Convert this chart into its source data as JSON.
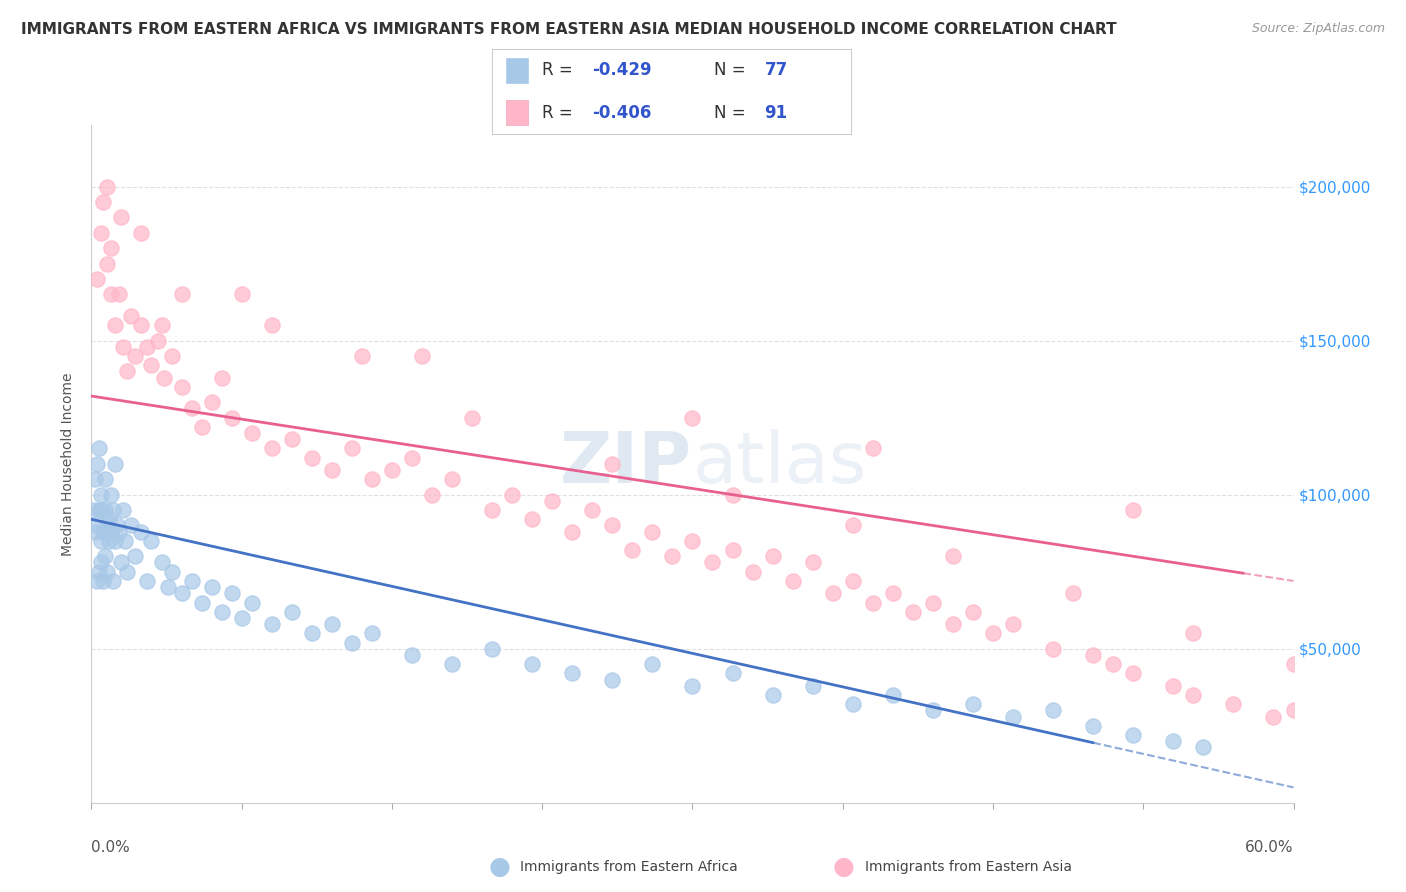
{
  "title": "IMMIGRANTS FROM EASTERN AFRICA VS IMMIGRANTS FROM EASTERN ASIA MEDIAN HOUSEHOLD INCOME CORRELATION CHART",
  "source": "Source: ZipAtlas.com",
  "ylabel": "Median Household Income",
  "series": [
    {
      "name": "Immigrants from Eastern Africa",
      "marker_color": "#a8c8e8",
      "line_color": "#4472c4",
      "R": -0.429,
      "N": 77
    },
    {
      "name": "Immigrants from Eastern Asia",
      "marker_color": "#ffb6c8",
      "line_color": "#e86090",
      "R": -0.406,
      "N": 91
    }
  ],
  "xlim": [
    0.0,
    0.6
  ],
  "ylim": [
    0,
    220000
  ],
  "yticks": [
    0,
    50000,
    100000,
    150000,
    200000
  ],
  "ytick_labels": [
    "",
    "$50,000",
    "$100,000",
    "$150,000",
    "$200,000"
  ],
  "background_color": "#ffffff",
  "grid_color": "#e0e0e0",
  "africa_line_intercept": 92000,
  "africa_line_slope": -145000,
  "africa_line_solid_end": 0.5,
  "asia_line_intercept": 132000,
  "asia_line_slope": -100000,
  "asia_line_solid_end": 0.575,
  "africa_x": [
    0.001,
    0.002,
    0.002,
    0.003,
    0.003,
    0.003,
    0.004,
    0.004,
    0.004,
    0.005,
    0.005,
    0.005,
    0.005,
    0.006,
    0.006,
    0.007,
    0.007,
    0.007,
    0.008,
    0.008,
    0.009,
    0.009,
    0.01,
    0.01,
    0.011,
    0.011,
    0.012,
    0.012,
    0.013,
    0.014,
    0.015,
    0.016,
    0.017,
    0.018,
    0.02,
    0.022,
    0.025,
    0.028,
    0.03,
    0.035,
    0.038,
    0.04,
    0.045,
    0.05,
    0.055,
    0.06,
    0.065,
    0.07,
    0.075,
    0.08,
    0.09,
    0.1,
    0.11,
    0.12,
    0.13,
    0.14,
    0.16,
    0.18,
    0.2,
    0.22,
    0.24,
    0.26,
    0.28,
    0.3,
    0.32,
    0.34,
    0.36,
    0.38,
    0.4,
    0.42,
    0.44,
    0.46,
    0.48,
    0.5,
    0.52,
    0.54,
    0.555
  ],
  "africa_y": [
    95000,
    88000,
    105000,
    72000,
    110000,
    90000,
    95000,
    75000,
    115000,
    85000,
    95000,
    78000,
    100000,
    88000,
    72000,
    95000,
    105000,
    80000,
    90000,
    75000,
    85000,
    92000,
    88000,
    100000,
    72000,
    95000,
    85000,
    110000,
    90000,
    88000,
    78000,
    95000,
    85000,
    75000,
    90000,
    80000,
    88000,
    72000,
    85000,
    78000,
    70000,
    75000,
    68000,
    72000,
    65000,
    70000,
    62000,
    68000,
    60000,
    65000,
    58000,
    62000,
    55000,
    58000,
    52000,
    55000,
    48000,
    45000,
    50000,
    45000,
    42000,
    40000,
    45000,
    38000,
    42000,
    35000,
    38000,
    32000,
    35000,
    30000,
    32000,
    28000,
    30000,
    25000,
    22000,
    20000,
    18000
  ],
  "asia_x": [
    0.003,
    0.005,
    0.006,
    0.008,
    0.01,
    0.01,
    0.012,
    0.014,
    0.016,
    0.018,
    0.02,
    0.022,
    0.025,
    0.028,
    0.03,
    0.033,
    0.036,
    0.04,
    0.045,
    0.05,
    0.055,
    0.06,
    0.065,
    0.07,
    0.08,
    0.09,
    0.1,
    0.11,
    0.12,
    0.13,
    0.14,
    0.15,
    0.16,
    0.17,
    0.18,
    0.2,
    0.21,
    0.22,
    0.23,
    0.24,
    0.25,
    0.26,
    0.27,
    0.28,
    0.29,
    0.3,
    0.31,
    0.32,
    0.33,
    0.34,
    0.35,
    0.36,
    0.37,
    0.38,
    0.39,
    0.4,
    0.41,
    0.42,
    0.43,
    0.44,
    0.45,
    0.46,
    0.48,
    0.5,
    0.51,
    0.52,
    0.54,
    0.55,
    0.57,
    0.59,
    0.035,
    0.075,
    0.135,
    0.19,
    0.26,
    0.32,
    0.38,
    0.43,
    0.49,
    0.55,
    0.008,
    0.015,
    0.025,
    0.045,
    0.09,
    0.165,
    0.3,
    0.39,
    0.52,
    0.6,
    0.6
  ],
  "asia_y": [
    170000,
    185000,
    195000,
    175000,
    165000,
    180000,
    155000,
    165000,
    148000,
    140000,
    158000,
    145000,
    155000,
    148000,
    142000,
    150000,
    138000,
    145000,
    135000,
    128000,
    122000,
    130000,
    138000,
    125000,
    120000,
    115000,
    118000,
    112000,
    108000,
    115000,
    105000,
    108000,
    112000,
    100000,
    105000,
    95000,
    100000,
    92000,
    98000,
    88000,
    95000,
    90000,
    82000,
    88000,
    80000,
    85000,
    78000,
    82000,
    75000,
    80000,
    72000,
    78000,
    68000,
    72000,
    65000,
    68000,
    62000,
    65000,
    58000,
    62000,
    55000,
    58000,
    50000,
    48000,
    45000,
    42000,
    38000,
    35000,
    32000,
    28000,
    155000,
    165000,
    145000,
    125000,
    110000,
    100000,
    90000,
    80000,
    68000,
    55000,
    200000,
    190000,
    185000,
    165000,
    155000,
    145000,
    125000,
    115000,
    95000,
    45000,
    30000
  ]
}
